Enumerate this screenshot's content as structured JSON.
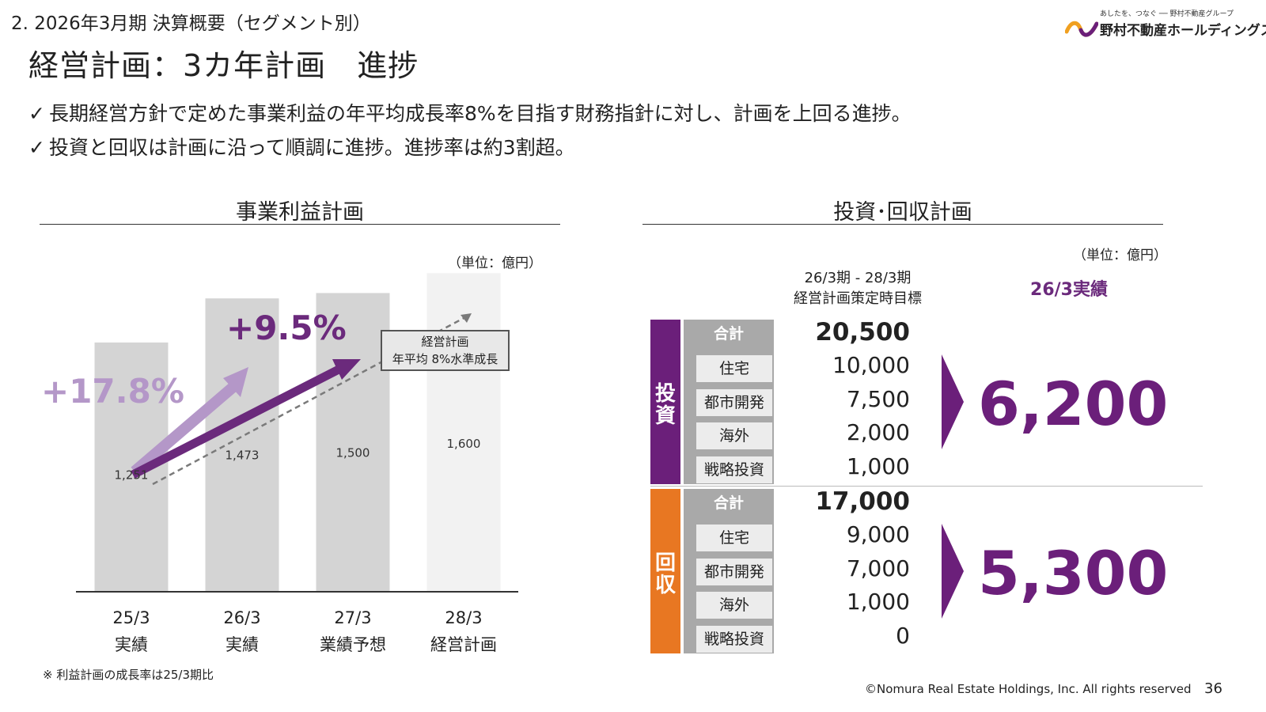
{
  "header": {
    "section": "2.  2026年3月期 決算概要（セグメント別）",
    "title": "経営計画：3カ年計画　進捗",
    "logo_tagline": "あしたを、つなぐ ── 野村不動産グループ",
    "logo_name": "野村不動産ホールディングス"
  },
  "bullets": [
    "長期経営方針で定めた事業利益の年平均成長率8%を目指す財務指針に対し、計画を上回る進捗。",
    "投資と回収は計画に沿って順調に進捗。進捗率は約3割超。"
  ],
  "check_mark": "✓",
  "left_panel": {
    "title": "事業利益計画",
    "unit": "（単位：億円）",
    "growth_a": "+17.8%",
    "growth_b": "+9.5%",
    "plan_box_line1": "経営計画",
    "plan_box_line2": "年平均 8%水準成長",
    "footnote": "※ 利益計画の成長率は25/3期比"
  },
  "chart_data": {
    "type": "bar",
    "categories": [
      "25/3",
      "26/3",
      "27/3",
      "28/3"
    ],
    "category_sublabels": [
      "実績",
      "実績",
      "業績予想",
      "経営計画"
    ],
    "values": [
      1251,
      1473,
      1500,
      1600
    ],
    "value_labels": [
      "1,251",
      "1,473",
      "1,500",
      "1,600"
    ],
    "title": "事業利益計画",
    "xlabel": "",
    "ylabel": "",
    "ylim": [
      0,
      1900
    ],
    "grid": false,
    "colors": [
      "#d4d4d4",
      "#d4d4d4",
      "#d4d4d4",
      "#f2f2f2"
    ]
  },
  "right_panel": {
    "title": "投資･回収計画",
    "unit": "（単位：億円）",
    "col_head_line1": "26/3期 - 28/3期",
    "col_head_line2": "経営計画策定時目標",
    "actual_head": "26/3実績",
    "invest": {
      "side_label": "投資",
      "rows": [
        {
          "label": "合計",
          "value": "20,500"
        },
        {
          "label": "住宅",
          "value": "10,000"
        },
        {
          "label": "都市開発",
          "value": "7,500"
        },
        {
          "label": "海外",
          "value": "2,000"
        },
        {
          "label": "戦略投資",
          "value": "1,000"
        }
      ],
      "actual": "6,200"
    },
    "recover": {
      "side_label": "回収",
      "rows": [
        {
          "label": "合計",
          "value": "17,000"
        },
        {
          "label": "住宅",
          "value": "9,000"
        },
        {
          "label": "都市開発",
          "value": "7,000"
        },
        {
          "label": "海外",
          "value": "1,000"
        },
        {
          "label": "戦略投資",
          "value": "0"
        }
      ],
      "actual": "5,300"
    },
    "colors": {
      "invest": "#6b1f7a",
      "recover": "#e87722",
      "label_bg": "#a9a9a9"
    }
  },
  "footer": {
    "copyright": "©Nomura Real Estate Holdings, Inc. All rights reserved",
    "page": "36"
  }
}
